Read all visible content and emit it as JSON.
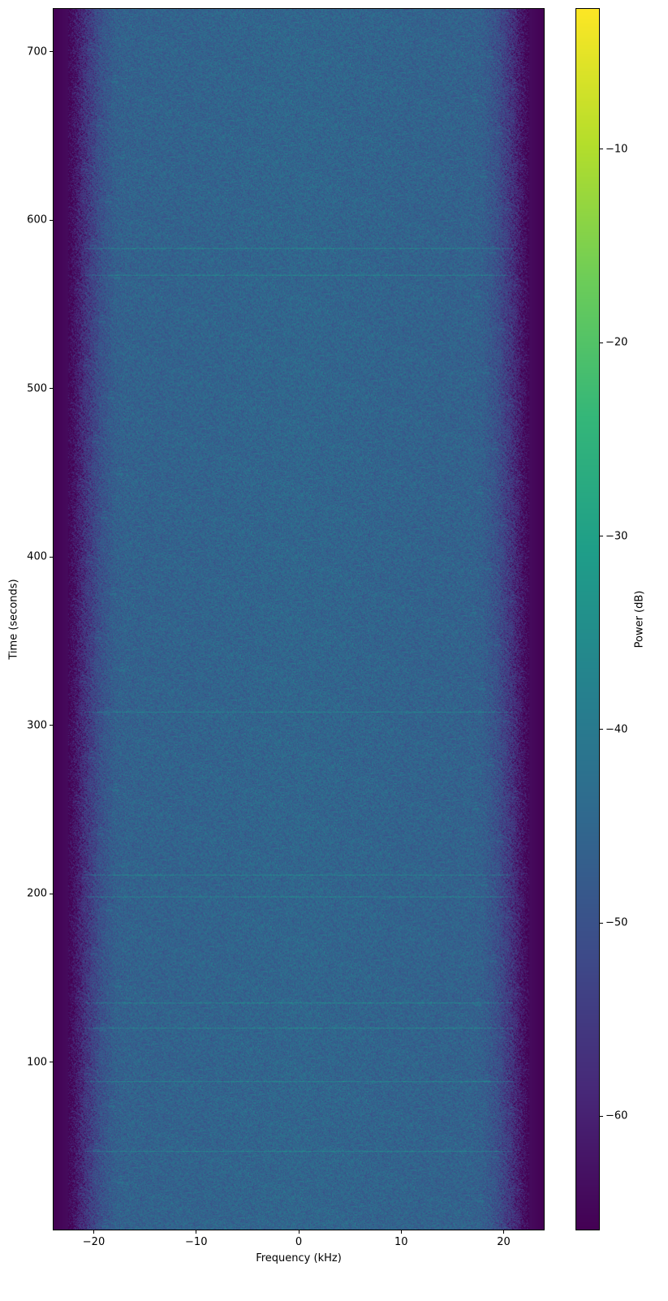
{
  "chart_data": {
    "type": "heatmap",
    "title": "",
    "xlabel": "Frequency (kHz)",
    "ylabel": "Time (seconds)",
    "xlim": [
      -24,
      24
    ],
    "ylim": [
      0,
      726
    ],
    "xticks": [
      -20,
      -10,
      0,
      10,
      20
    ],
    "xtick_labels": [
      "−20",
      "−10",
      "0",
      "10",
      "20"
    ],
    "yticks": [
      100,
      200,
      300,
      400,
      500,
      600,
      700
    ],
    "ytick_labels": [
      "100",
      "200",
      "300",
      "400",
      "500",
      "600",
      "700"
    ],
    "colormap": "viridis",
    "colorbar": {
      "label": "Power (dB)",
      "range": [
        -65.9,
        -2.7
      ],
      "ticks": [
        -60,
        -50,
        -40,
        -30,
        -20,
        -10
      ],
      "tick_labels": [
        "−60",
        "−50",
        "−40",
        "−30",
        "−20",
        "−10"
      ]
    },
    "power_profile": {
      "frequency_khz": [
        -24,
        -22.5,
        -21,
        -19.5,
        -18,
        0,
        18,
        19.5,
        21,
        22.5,
        24
      ],
      "mean_power_db": [
        -65.9,
        -64,
        -55,
        -49,
        -46,
        -45,
        -46,
        -49,
        -55,
        -64,
        -65.9
      ]
    },
    "bright_lines_time_s": [
      47,
      88,
      120,
      135,
      198,
      211,
      308,
      568,
      584
    ],
    "grid": false
  }
}
